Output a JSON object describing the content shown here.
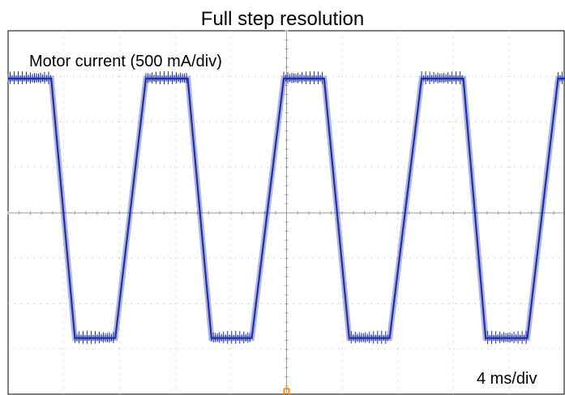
{
  "chart_data": {
    "type": "line",
    "title": "Full step resolution",
    "ylabel": "Motor current (500 mA/div)",
    "xlabel": "4 ms/div",
    "grid": true,
    "x_divisions": 10,
    "y_divisions": 8,
    "xlim": [
      0,
      40
    ],
    "ylim": [
      -4,
      4
    ],
    "x_unit": "ms",
    "y_unit": "div",
    "series": [
      {
        "x": [
          0,
          3.1,
          4.8,
          7.7,
          9.9,
          12.9,
          14.6,
          17.5,
          19.8,
          22.7,
          24.5,
          27.4,
          29.7,
          32.7,
          34.3,
          37.3,
          39.5,
          40
        ],
        "y": [
          2.95,
          2.95,
          -2.75,
          -2.75,
          2.95,
          2.95,
          -2.75,
          -2.75,
          2.95,
          2.95,
          -2.75,
          -2.75,
          2.95,
          2.95,
          -2.75,
          -2.75,
          2.95,
          2.95
        ]
      }
    ],
    "trace_color": "#1f2fa8",
    "grid_color": "#b8b8b8",
    "trigger_marker_color": "#ff8c00"
  }
}
